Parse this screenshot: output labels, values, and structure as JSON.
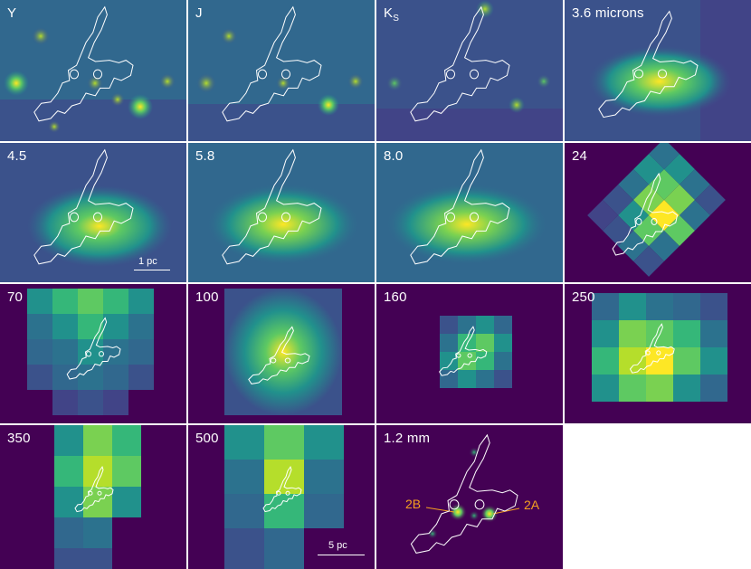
{
  "panels": [
    {
      "id": "Y",
      "label": "Y",
      "sub": ""
    },
    {
      "id": "J",
      "label": "J",
      "sub": ""
    },
    {
      "id": "Ks",
      "label": "K",
      "sub": "S"
    },
    {
      "id": "3.6",
      "label": "3.6 microns",
      "sub": ""
    },
    {
      "id": "4.5",
      "label": "4.5",
      "sub": ""
    },
    {
      "id": "5.8",
      "label": "5.8",
      "sub": ""
    },
    {
      "id": "8.0",
      "label": "8.0",
      "sub": ""
    },
    {
      "id": "24",
      "label": "24",
      "sub": ""
    },
    {
      "id": "70",
      "label": "70",
      "sub": ""
    },
    {
      "id": "100",
      "label": "100",
      "sub": ""
    },
    {
      "id": "160",
      "label": "160",
      "sub": ""
    },
    {
      "id": "250",
      "label": "250",
      "sub": ""
    },
    {
      "id": "350",
      "label": "350",
      "sub": ""
    },
    {
      "id": "500",
      "label": "500",
      "sub": ""
    },
    {
      "id": "1.2mm",
      "label": "1.2 mm",
      "sub": ""
    }
  ],
  "scalebars": {
    "small": "1 pc",
    "large": "5 pc"
  },
  "annotations": {
    "left": "2B",
    "right": "2A"
  },
  "colors": {
    "background": "#440154",
    "contour": "#ffffff",
    "annotation": "#f5a020"
  }
}
